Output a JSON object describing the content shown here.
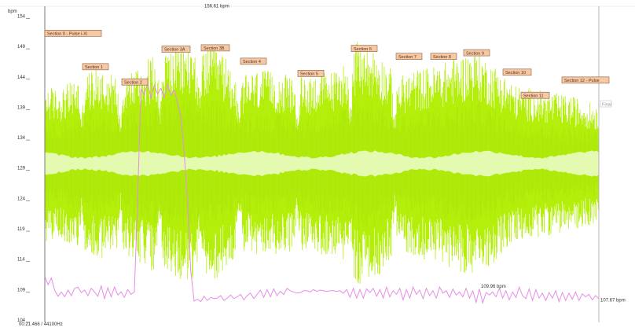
{
  "chart_data": {
    "type": "line",
    "title": "",
    "xlabel": "",
    "ylabel": "bpm",
    "ylim": [
      104,
      156
    ],
    "yticks": [
      104,
      109,
      114,
      119,
      124,
      129,
      134,
      139,
      144,
      149,
      154
    ],
    "colors": {
      "envelope": "#b3ef0a",
      "envelope_dark": "#a6e00c",
      "core": "#e4fab0",
      "tempo": "#e68de6",
      "cursor": "#7a7a7a",
      "end_line": "#b5b5b5"
    },
    "start_label": "00:21.466 / 44100Hz",
    "annotations": {
      "peak": "156.61 bpm",
      "low": "109.96 bpm",
      "end": "107.67 bpm",
      "peak_value": 156.61,
      "low_value": 109.96,
      "end_value": 107.67
    },
    "sections": [
      {
        "label": "Section 0 - Pulse i-Xi",
        "value": 151.3
      },
      {
        "label": "Section 1",
        "value": 145.8
      },
      {
        "label": "Section 2",
        "value": 143.3
      },
      {
        "label": "Section 3A",
        "value": 148.7
      },
      {
        "label": "Section 3B",
        "value": 148.9
      },
      {
        "label": "Section 4",
        "value": 146.7
      },
      {
        "label": "Section 5",
        "value": 144.7
      },
      {
        "label": "Section 6",
        "value": 148.8
      },
      {
        "label": "Section 7",
        "value": 147.5
      },
      {
        "label": "Section 8",
        "value": 147.5
      },
      {
        "label": "Section 9",
        "value": 148.1
      },
      {
        "label": "Section 10",
        "value": 144.9
      },
      {
        "label": "Section 11",
        "value": 141.1
      },
      {
        "label": "Section 12 - Pulse",
        "value": 143.6
      }
    ],
    "end_marker": "Final",
    "tempo_series": {
      "name": "",
      "points": [
        [
          0,
          111.5
        ],
        [
          1,
          110.2
        ],
        [
          2,
          111.3
        ],
        [
          3,
          109.2
        ],
        [
          4,
          108.3
        ],
        [
          5,
          109.0
        ],
        [
          6,
          108.2
        ],
        [
          7,
          109.3
        ],
        [
          8,
          108.4
        ],
        [
          9,
          109.6
        ],
        [
          10,
          109.8
        ],
        [
          11,
          108.9
        ],
        [
          12,
          109.3
        ],
        [
          13,
          108.4
        ],
        [
          14,
          109.6
        ],
        [
          15,
          109.0
        ],
        [
          16,
          108.3
        ],
        [
          17,
          110.0
        ],
        [
          18,
          107.9
        ],
        [
          19,
          109.7
        ],
        [
          20,
          108.2
        ],
        [
          21,
          109.8
        ],
        [
          22,
          108.5
        ],
        [
          23,
          109.0
        ],
        [
          24,
          108.1
        ],
        [
          25,
          109.4
        ],
        [
          26,
          108.6
        ],
        [
          27,
          109.0
        ],
        [
          28,
          124.5
        ],
        [
          29,
          142.4
        ],
        [
          30,
          141.5
        ],
        [
          31,
          143.4
        ],
        [
          32,
          140.8
        ],
        [
          33,
          143.0
        ],
        [
          34,
          141.6
        ],
        [
          35,
          142.5
        ],
        [
          36,
          141.0
        ],
        [
          37,
          143.2
        ],
        [
          38,
          141.4
        ],
        [
          39,
          142.2
        ],
        [
          40,
          140.2
        ],
        [
          41,
          138.0
        ],
        [
          42,
          132.0
        ],
        [
          43,
          124.0
        ],
        [
          44,
          112.5
        ],
        [
          45,
          107.5
        ],
        [
          46,
          107.8
        ],
        [
          47,
          107.4
        ],
        [
          48,
          108.3
        ],
        [
          49,
          107.6
        ],
        [
          50,
          108.1
        ],
        [
          51,
          107.9
        ],
        [
          52,
          108.0
        ],
        [
          53,
          108.4
        ],
        [
          54,
          107.6
        ],
        [
          55,
          108.0
        ],
        [
          56,
          108.5
        ],
        [
          57,
          107.9
        ],
        [
          58,
          108.2
        ],
        [
          59,
          108.6
        ],
        [
          60,
          107.7
        ],
        [
          61,
          108.4
        ],
        [
          62,
          108.8
        ],
        [
          63,
          107.9
        ],
        [
          64,
          108.6
        ],
        [
          65,
          109.3
        ],
        [
          66,
          108.1
        ],
        [
          67,
          109.4
        ],
        [
          68,
          108.2
        ],
        [
          69,
          109.5
        ],
        [
          70,
          108.4
        ],
        [
          71,
          109.1
        ],
        [
          72,
          108.6
        ],
        [
          73,
          109.6
        ],
        [
          74,
          109.2
        ],
        [
          75,
          109.0
        ],
        [
          76,
          108.8
        ],
        [
          77,
          108.9
        ],
        [
          78,
          109.2
        ],
        [
          79,
          109.2
        ],
        [
          80,
          109.0
        ],
        [
          81,
          109.4
        ],
        [
          82,
          109.1
        ],
        [
          83,
          109.3
        ],
        [
          84,
          109.2
        ],
        [
          85,
          109.1
        ],
        [
          86,
          109.2
        ],
        [
          87,
          109.2
        ],
        [
          88,
          109.1
        ],
        [
          89,
          109.2
        ],
        [
          90,
          108.8
        ],
        [
          91,
          109.4
        ],
        [
          92,
          108.1
        ],
        [
          93,
          109.6
        ],
        [
          94,
          108.0
        ],
        [
          95,
          109.4
        ],
        [
          96,
          108.0
        ],
        [
          97,
          109.5
        ],
        [
          98,
          108.9
        ],
        [
          99,
          109.6
        ],
        [
          100,
          108.3
        ],
        [
          101,
          109.4
        ],
        [
          102,
          108.0
        ],
        [
          103,
          109.8
        ],
        [
          104,
          108.2
        ],
        [
          105,
          109.2
        ],
        [
          106,
          108.6
        ],
        [
          107,
          109.6
        ],
        [
          108,
          107.7
        ],
        [
          109,
          109.4
        ],
        [
          110,
          108.0
        ],
        [
          111,
          109.8
        ],
        [
          112,
          108.6
        ],
        [
          113,
          109.3
        ],
        [
          114,
          107.9
        ],
        [
          115,
          109.6
        ],
        [
          116,
          108.4
        ],
        [
          117,
          109.2
        ],
        [
          118,
          108.0
        ],
        [
          119,
          109.8
        ],
        [
          120,
          108.8
        ],
        [
          121,
          109.2
        ],
        [
          122,
          108.1
        ],
        [
          123,
          109.5
        ],
        [
          124,
          108.5
        ],
        [
          125,
          109.0
        ],
        [
          126,
          108.2
        ],
        [
          127,
          109.6
        ],
        [
          128,
          108.0
        ],
        [
          129,
          109.2
        ],
        [
          130,
          107.3
        ],
        [
          131,
          109.5
        ],
        [
          132,
          107.2
        ],
        [
          133,
          108.9
        ],
        [
          134,
          108.5
        ],
        [
          135,
          109.0
        ],
        [
          136,
          108.2
        ],
        [
          137,
          109.6
        ],
        [
          138,
          108.0
        ],
        [
          139,
          109.2
        ],
        [
          140,
          107.7
        ],
        [
          141,
          109.0
        ],
        [
          142,
          108.1
        ],
        [
          143,
          109.8
        ],
        [
          144,
          108.4
        ],
        [
          145,
          107.9
        ],
        [
          146,
          109.5
        ],
        [
          147,
          107.6
        ],
        [
          148,
          109.4
        ],
        [
          149,
          108.0
        ],
        [
          150,
          108.8
        ],
        [
          151,
          107.6
        ],
        [
          152,
          108.9
        ],
        [
          153,
          108.0
        ],
        [
          154,
          109.2
        ],
        [
          155,
          107.4
        ],
        [
          156,
          108.9
        ],
        [
          157,
          107.6
        ],
        [
          158,
          108.8
        ],
        [
          159,
          107.8
        ],
        [
          160,
          109.0
        ],
        [
          161,
          107.6
        ],
        [
          162,
          108.7
        ],
        [
          163,
          108.2
        ],
        [
          164,
          108.6
        ],
        [
          165,
          107.7
        ],
        [
          166,
          108.4
        ],
        [
          167,
          107.9
        ]
      ]
    }
  }
}
